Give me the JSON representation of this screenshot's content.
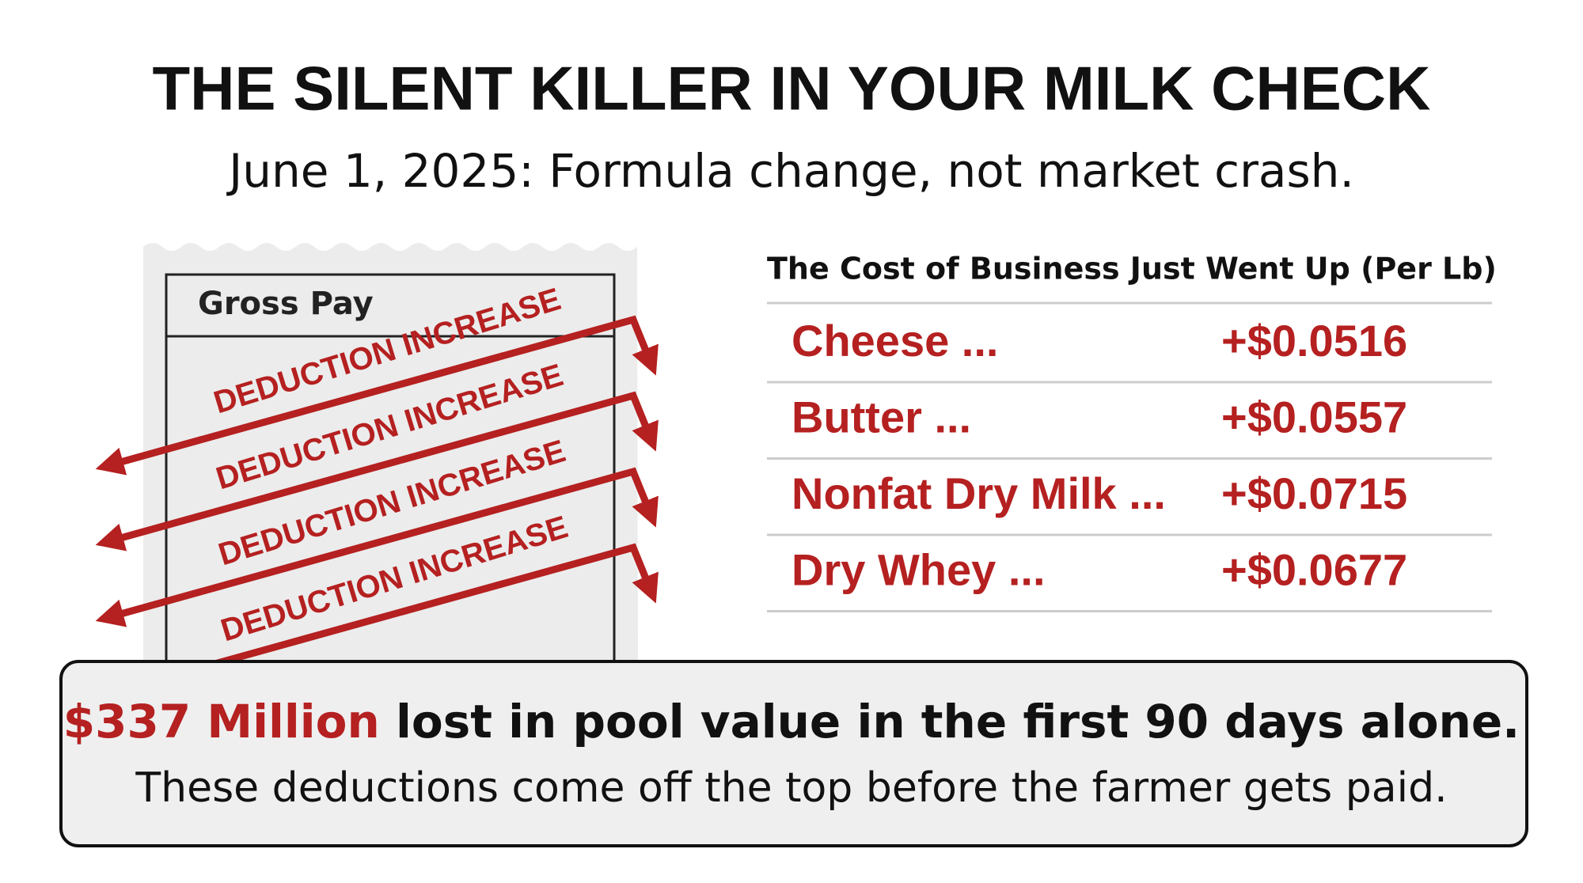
{
  "header": {
    "title": "THE SILENT KILLER IN YOUR MILK CHECK",
    "subtitle": "June 1, 2025: Formula change, not market crash."
  },
  "receipt": {
    "header": "Gross Pay",
    "stamps": [
      "DEDUCTION INCREASE",
      "DEDUCTION INCREASE",
      "DEDUCTION INCREASE",
      "DEDUCTION INCREASE"
    ]
  },
  "table": {
    "title": "The Cost of Business Just Went Up (Per Lb)",
    "rows": [
      [
        "Cheese ...",
        "+$0.0516"
      ],
      [
        "Butter ...",
        "+$0.0557"
      ],
      [
        "Nonfat Dry Milk ...",
        "+$0.0715"
      ],
      [
        "Dry Whey ...",
        "+$0.0677"
      ]
    ]
  },
  "callout": {
    "highlight": "$337 Million",
    "rest": " lost in pool value in the first 90 days alone.",
    "note": "These deductions come off the top before the farmer gets paid."
  }
}
